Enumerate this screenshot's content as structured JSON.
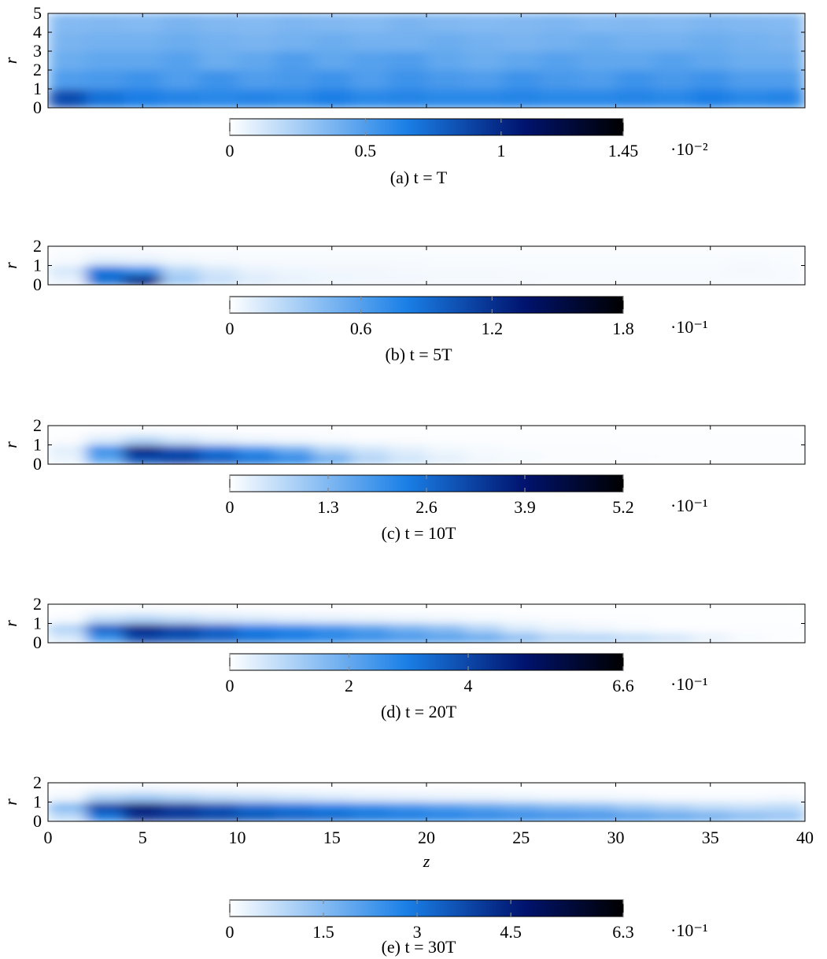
{
  "chart_data": [
    {
      "type": "heatmap",
      "caption": "(a) t = T",
      "ylabel": "r",
      "xlim": [
        0,
        40
      ],
      "xticks": [
        0,
        5,
        10,
        15,
        20,
        25,
        30,
        35,
        40
      ],
      "show_xtick_labels": false,
      "ylim": [
        0,
        5
      ],
      "yticks": [
        0,
        1,
        2,
        3,
        4,
        5
      ],
      "bins_z": [
        0,
        2,
        4,
        6,
        8,
        10,
        12,
        14,
        16,
        18,
        20,
        22,
        24,
        26,
        28,
        30,
        32,
        34,
        36,
        38,
        40
      ],
      "bins_r": [
        0,
        1,
        2,
        3,
        4,
        5
      ],
      "values": [
        [
          0.85,
          0.7,
          0.65,
          0.62,
          0.6,
          0.62,
          0.6,
          0.65,
          0.6,
          0.62,
          0.6,
          0.6,
          0.62,
          0.6,
          0.6,
          0.62,
          0.6,
          0.65,
          0.6,
          0.62
        ],
        [
          0.5,
          0.52,
          0.55,
          0.5,
          0.55,
          0.5,
          0.52,
          0.55,
          0.5,
          0.55,
          0.52,
          0.5,
          0.55,
          0.52,
          0.5,
          0.55,
          0.52,
          0.55,
          0.5,
          0.5
        ],
        [
          0.42,
          0.45,
          0.45,
          0.48,
          0.42,
          0.45,
          0.5,
          0.45,
          0.48,
          0.5,
          0.45,
          0.42,
          0.45,
          0.48,
          0.45,
          0.45,
          0.48,
          0.45,
          0.42,
          0.42
        ],
        [
          0.38,
          0.4,
          0.4,
          0.42,
          0.4,
          0.38,
          0.4,
          0.42,
          0.4,
          0.4,
          0.42,
          0.4,
          0.38,
          0.4,
          0.42,
          0.4,
          0.4,
          0.42,
          0.4,
          0.38
        ],
        [
          0.35,
          0.36,
          0.35,
          0.38,
          0.36,
          0.35,
          0.37,
          0.36,
          0.35,
          0.38,
          0.36,
          0.35,
          0.36,
          0.37,
          0.35,
          0.36,
          0.35,
          0.37,
          0.36,
          0.35
        ]
      ],
      "colorbar": {
        "lim": [
          0,
          1.45
        ],
        "ticks": [
          0,
          0.5,
          1,
          1.45
        ],
        "exponent_label": "·10⁻²"
      }
    },
    {
      "type": "heatmap",
      "caption": "(b) t = 5T",
      "ylabel": "r",
      "xlim": [
        0,
        40
      ],
      "xticks": [
        0,
        5,
        10,
        15,
        20,
        25,
        30,
        35,
        40
      ],
      "show_xtick_labels": false,
      "ylim": [
        0,
        2
      ],
      "yticks": [
        0,
        1,
        2
      ],
      "bins_z": [
        0,
        2,
        4,
        6,
        8,
        10,
        12,
        14,
        16,
        18,
        20,
        22,
        24,
        26,
        28,
        30,
        32,
        34,
        36,
        38,
        40
      ],
      "bins_r": [
        0,
        0.5,
        1,
        1.5,
        2
      ],
      "values": [
        [
          0.08,
          0.9,
          1.25,
          0.35,
          0.2,
          0.12,
          0.08,
          0.06,
          0.05,
          0.05,
          0.04,
          0.04,
          0.04,
          0.03,
          0.03,
          0.03,
          0.03,
          0.03,
          0.03,
          0.03
        ],
        [
          0.15,
          0.85,
          0.7,
          0.25,
          0.15,
          0.08,
          0.06,
          0.05,
          0.05,
          0.04,
          0.04,
          0.04,
          0.03,
          0.03,
          0.03,
          0.03,
          0.03,
          0.03,
          0.04,
          0.03
        ],
        [
          0.03,
          0.12,
          0.1,
          0.06,
          0.04,
          0.03,
          0.03,
          0.03,
          0.03,
          0.03,
          0.02,
          0.02,
          0.02,
          0.02,
          0.02,
          0.02,
          0.02,
          0.02,
          0.03,
          0.02
        ],
        [
          0.02,
          0.03,
          0.03,
          0.02,
          0.02,
          0.02,
          0.02,
          0.02,
          0.02,
          0.02,
          0.02,
          0.02,
          0.02,
          0.02,
          0.02,
          0.02,
          0.02,
          0.02,
          0.02,
          0.02
        ]
      ],
      "colorbar": {
        "lim": [
          0,
          1.8
        ],
        "ticks": [
          0,
          0.6,
          1.2,
          1.8
        ],
        "exponent_label": "·10⁻¹"
      }
    },
    {
      "type": "heatmap",
      "caption": "(c) t = 10T",
      "ylabel": "r",
      "xlim": [
        0,
        40
      ],
      "xticks": [
        0,
        5,
        10,
        15,
        20,
        25,
        30,
        35,
        40
      ],
      "show_xtick_labels": false,
      "ylim": [
        0,
        2
      ],
      "yticks": [
        0,
        1,
        2
      ],
      "bins_z": [
        0,
        2,
        4,
        6,
        8,
        10,
        12,
        14,
        16,
        18,
        20,
        22,
        24,
        26,
        28,
        30,
        32,
        34,
        36,
        38,
        40
      ],
      "bins_r": [
        0,
        0.5,
        1,
        1.5,
        2
      ],
      "values": [
        [
          0.2,
          1.6,
          3.0,
          3.2,
          2.8,
          2.5,
          2.2,
          1.5,
          0.8,
          0.5,
          0.3,
          0.15,
          0.1,
          0.06,
          0.05,
          0.05,
          0.04,
          0.04,
          0.04,
          0.04
        ],
        [
          0.3,
          2.0,
          3.6,
          3.0,
          2.5,
          2.0,
          1.5,
          0.8,
          0.5,
          0.3,
          0.15,
          0.1,
          0.06,
          0.05,
          0.05,
          0.04,
          0.04,
          0.04,
          0.04,
          0.04
        ],
        [
          0.05,
          0.4,
          0.8,
          0.5,
          0.3,
          0.2,
          0.15,
          0.1,
          0.06,
          0.05,
          0.04,
          0.04,
          0.03,
          0.03,
          0.03,
          0.03,
          0.03,
          0.03,
          0.03,
          0.03
        ],
        [
          0.02,
          0.05,
          0.08,
          0.06,
          0.04,
          0.03,
          0.03,
          0.03,
          0.02,
          0.02,
          0.02,
          0.02,
          0.02,
          0.02,
          0.02,
          0.02,
          0.02,
          0.02,
          0.02,
          0.02
        ]
      ],
      "colorbar": {
        "lim": [
          0,
          5.2
        ],
        "ticks": [
          0,
          1.3,
          2.6,
          3.9,
          5.2
        ],
        "exponent_label": "·10⁻¹"
      }
    },
    {
      "type": "heatmap",
      "caption": "(d) t = 20T",
      "ylabel": "r",
      "xlim": [
        0,
        40
      ],
      "xticks": [
        0,
        5,
        10,
        15,
        20,
        25,
        30,
        35,
        40
      ],
      "show_xtick_labels": false,
      "ylim": [
        0,
        2
      ],
      "yticks": [
        0,
        1,
        2
      ],
      "bins_z": [
        0,
        2,
        4,
        6,
        8,
        10,
        12,
        14,
        16,
        18,
        20,
        22,
        24,
        26,
        28,
        30,
        32,
        34,
        36,
        38,
        40
      ],
      "bins_r": [
        0,
        0.5,
        1,
        1.5,
        2
      ],
      "values": [
        [
          0.5,
          2.5,
          4.0,
          3.8,
          3.5,
          3.2,
          3.0,
          2.8,
          2.6,
          2.4,
          2.2,
          2.0,
          1.5,
          1.0,
          1.0,
          0.8,
          0.6,
          0.3,
          0.1,
          0.05
        ],
        [
          1.0,
          3.5,
          4.5,
          4.0,
          3.5,
          3.0,
          2.8,
          2.5,
          2.2,
          1.8,
          1.5,
          1.0,
          0.5,
          0.3,
          0.2,
          0.1,
          0.05,
          0.04,
          0.04,
          0.04
        ],
        [
          0.1,
          0.8,
          1.0,
          0.8,
          0.6,
          0.5,
          0.4,
          0.35,
          0.3,
          0.25,
          0.2,
          0.15,
          0.1,
          0.06,
          0.05,
          0.04,
          0.03,
          0.03,
          0.03,
          0.03
        ],
        [
          0.02,
          0.08,
          0.1,
          0.08,
          0.06,
          0.05,
          0.04,
          0.04,
          0.03,
          0.03,
          0.03,
          0.02,
          0.02,
          0.02,
          0.02,
          0.02,
          0.02,
          0.02,
          0.02,
          0.02
        ]
      ],
      "colorbar": {
        "lim": [
          0,
          6.6
        ],
        "ticks": [
          0,
          2,
          4,
          6.6
        ],
        "exponent_label": "·10⁻¹"
      }
    },
    {
      "type": "heatmap",
      "caption": "(e) t = 30T",
      "ylabel": "r",
      "xlabel": "z",
      "xlim": [
        0,
        40
      ],
      "xticks": [
        0,
        5,
        10,
        15,
        20,
        25,
        30,
        35,
        40
      ],
      "show_xtick_labels": true,
      "ylim": [
        0,
        2
      ],
      "yticks": [
        0,
        1,
        2
      ],
      "bins_z": [
        0,
        2,
        4,
        6,
        8,
        10,
        12,
        14,
        16,
        18,
        20,
        22,
        24,
        26,
        28,
        30,
        32,
        34,
        36,
        38,
        40
      ],
      "bins_r": [
        0,
        0.5,
        1,
        1.5,
        2
      ],
      "values": [
        [
          0.8,
          3.0,
          4.2,
          4.0,
          3.8,
          3.5,
          3.3,
          3.2,
          3.0,
          2.9,
          2.8,
          2.7,
          2.6,
          2.5,
          2.4,
          2.2,
          2.0,
          1.8,
          1.5,
          1.3
        ],
        [
          1.5,
          3.8,
          4.5,
          4.0,
          3.6,
          3.2,
          3.0,
          2.8,
          2.6,
          2.4,
          2.2,
          2.0,
          1.8,
          1.6,
          1.5,
          1.2,
          1.0,
          0.8,
          0.7,
          0.8
        ],
        [
          0.2,
          1.0,
          1.2,
          1.0,
          0.8,
          0.7,
          0.6,
          0.5,
          0.4,
          0.35,
          0.3,
          0.3,
          0.25,
          0.2,
          0.2,
          0.15,
          0.1,
          0.1,
          0.1,
          0.15
        ],
        [
          0.02,
          0.1,
          0.15,
          0.1,
          0.08,
          0.06,
          0.05,
          0.05,
          0.04,
          0.04,
          0.04,
          0.03,
          0.03,
          0.03,
          0.03,
          0.03,
          0.03,
          0.03,
          0.03,
          0.03
        ]
      ],
      "colorbar": {
        "lim": [
          0,
          6.3
        ],
        "ticks": [
          0,
          1.5,
          3,
          4.5,
          6.3
        ],
        "exponent_label": "·10⁻¹"
      }
    }
  ]
}
